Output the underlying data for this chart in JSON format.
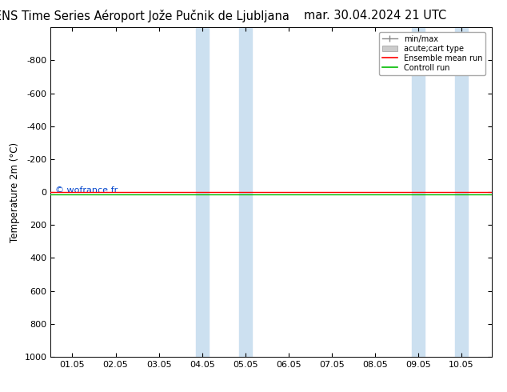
{
  "title_left": "ENS Time Series Aéroport Jože Pučnik de Ljubljana",
  "title_right": "mar. 30.04.2024 21 UTC",
  "ylabel": "Temperature 2m (°C)",
  "xtick_labels": [
    "01.05",
    "02.05",
    "03.05",
    "04.05",
    "05.05",
    "06.05",
    "07.05",
    "08.05",
    "09.05",
    "10.05"
  ],
  "xtick_positions": [
    0,
    1,
    2,
    3,
    4,
    5,
    6,
    7,
    8,
    9
  ],
  "xlim": [
    -0.5,
    9.7
  ],
  "yticks": [
    -800,
    -600,
    -400,
    -200,
    0,
    200,
    400,
    600,
    800,
    1000
  ],
  "ylim_top": -1000,
  "ylim_bottom": 1000,
  "shaded_regions": [
    {
      "xstart": 2.85,
      "xend": 3.15,
      "color": "#cce0f0"
    },
    {
      "xstart": 3.85,
      "xend": 4.15,
      "color": "#cce0f0"
    },
    {
      "xstart": 7.85,
      "xend": 8.15,
      "color": "#cce0f0"
    },
    {
      "xstart": 8.85,
      "xend": 9.15,
      "color": "#cce0f0"
    }
  ],
  "ensemble_mean_y": 0,
  "ensemble_mean_color": "#ff0000",
  "control_run_y": 0,
  "control_run_color": "#00bb00",
  "watermark": "© wofrance.fr",
  "watermark_color": "#0044cc",
  "legend_labels": [
    "min/max",
    "acute;cart type",
    "Ensemble mean run",
    "Controll run"
  ],
  "legend_line_colors": [
    "#888888",
    "#cccccc",
    "#ff0000",
    "#00bb00"
  ],
  "background_color": "#ffffff",
  "title_fontsize": 10.5,
  "axis_fontsize": 8.5,
  "tick_fontsize": 8
}
